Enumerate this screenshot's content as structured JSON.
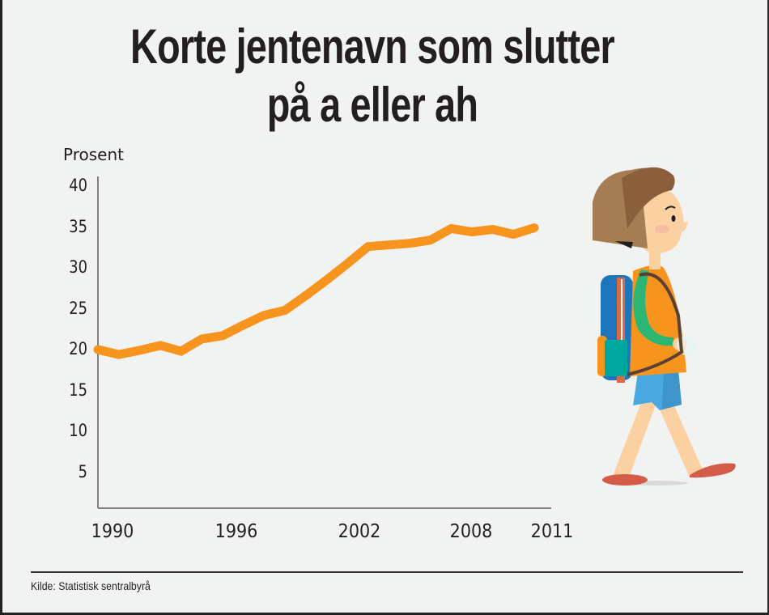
{
  "title": {
    "line1": "Korte jentenavn som slutter",
    "line2": "på a eller ah"
  },
  "footer": {
    "source": "Kilde: Statistisk sentralbyrå"
  },
  "illustration": "walking-schoolgirl-with-backpack",
  "colors": {
    "background": "#f1f2f2",
    "line": "#f7941d",
    "axis": "#808080",
    "text": "#231f20"
  },
  "chart_data": {
    "type": "line",
    "title": "Korte jentenavn som slutter på a eller ah",
    "xlabel": "",
    "ylabel": "Prosent",
    "ylim": [
      0,
      40
    ],
    "xlim": [
      1990,
      2011
    ],
    "grid": false,
    "legend": null,
    "yticks": [
      "40",
      "35",
      "30",
      "25",
      "20",
      "15",
      "10",
      "5"
    ],
    "xticks": [
      "1990",
      "1996",
      "2002",
      "2008",
      "2011"
    ],
    "x": [
      1990,
      1991,
      1992,
      1993,
      1994,
      1995,
      1996,
      1997,
      1998,
      1999,
      2000,
      2001,
      2002,
      2003,
      2004,
      2005,
      2006,
      2007,
      2008,
      2009,
      2010,
      2011
    ],
    "series": [
      {
        "name": "Prosent",
        "color": "#f7941d",
        "values": [
          20.1,
          19.5,
          20.0,
          20.6,
          19.9,
          21.4,
          21.8,
          23.1,
          24.3,
          24.9,
          26.7,
          28.6,
          30.6,
          32.7,
          32.9,
          33.1,
          33.5,
          34.9,
          34.5,
          34.8,
          34.2,
          35.0
        ]
      }
    ],
    "source": "Kilde: Statistisk sentralbyrå"
  }
}
